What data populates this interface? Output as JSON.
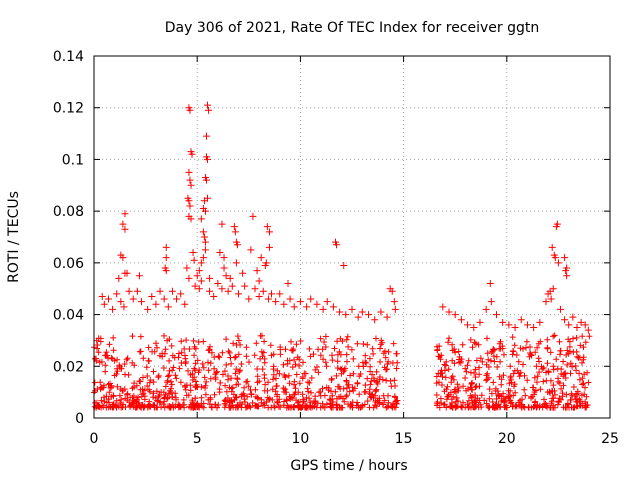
{
  "chart_data": {
    "type": "scatter",
    "title": "Day 306 of 2021, Rate Of TEC Index for receiver ggtn",
    "xlabel": "GPS time / hours",
    "ylabel": "ROTI / TECUs",
    "xlim": [
      0,
      25
    ],
    "ylim": [
      0,
      0.14
    ],
    "x_ticks": [
      0,
      5,
      10,
      15,
      20,
      25
    ],
    "y_ticks": [
      0,
      0.02,
      0.04,
      0.06,
      0.08,
      0.1,
      0.12,
      0.14
    ],
    "x_tick_labels": [
      "0",
      "5",
      "10",
      "15",
      "20",
      "25"
    ],
    "y_tick_labels": [
      "0",
      "0.02",
      "0.04",
      "0.06",
      "0.08",
      "0.1",
      "0.12",
      "0.14"
    ],
    "grid": true,
    "marker": "+",
    "marker_color": "#ff0000",
    "data_gap_hours": [
      14.7,
      16.6
    ],
    "series": [
      {
        "name": "ROTI",
        "points": [
          [
            4.6,
            0.12
          ],
          [
            4.65,
            0.119
          ],
          [
            5.5,
            0.121
          ],
          [
            5.55,
            0.119
          ],
          [
            5.45,
            0.109
          ],
          [
            4.7,
            0.103
          ],
          [
            4.75,
            0.102
          ],
          [
            5.45,
            0.101
          ],
          [
            5.5,
            0.1
          ],
          [
            4.6,
            0.095
          ],
          [
            4.65,
            0.092
          ],
          [
            4.7,
            0.09
          ],
          [
            5.4,
            0.093
          ],
          [
            5.45,
            0.092
          ],
          [
            4.55,
            0.085
          ],
          [
            4.6,
            0.084
          ],
          [
            4.65,
            0.082
          ],
          [
            5.35,
            0.084
          ],
          [
            5.5,
            0.085
          ],
          [
            1.5,
            0.079
          ],
          [
            4.6,
            0.078
          ],
          [
            4.7,
            0.077
          ],
          [
            5.3,
            0.081
          ],
          [
            5.4,
            0.08
          ],
          [
            5.2,
            0.077
          ],
          [
            6.2,
            0.075
          ],
          [
            7.7,
            0.078
          ],
          [
            8.4,
            0.074
          ],
          [
            1.4,
            0.075
          ],
          [
            1.5,
            0.073
          ],
          [
            6.8,
            0.074
          ],
          [
            6.85,
            0.072
          ],
          [
            8.5,
            0.072
          ],
          [
            22.4,
            0.074
          ],
          [
            22.45,
            0.075
          ],
          [
            5.3,
            0.072
          ],
          [
            5.35,
            0.07
          ],
          [
            5.4,
            0.068
          ],
          [
            6.9,
            0.068
          ],
          [
            6.95,
            0.067
          ],
          [
            8.5,
            0.066
          ],
          [
            3.5,
            0.066
          ],
          [
            4.8,
            0.064
          ],
          [
            5.4,
            0.065
          ],
          [
            6.1,
            0.064
          ],
          [
            7.6,
            0.065
          ],
          [
            11.7,
            0.068
          ],
          [
            11.75,
            0.067
          ],
          [
            22.2,
            0.066
          ],
          [
            1.3,
            0.063
          ],
          [
            1.4,
            0.062
          ],
          [
            3.5,
            0.062
          ],
          [
            4.85,
            0.061
          ],
          [
            5.2,
            0.06
          ],
          [
            5.3,
            0.062
          ],
          [
            6.3,
            0.062
          ],
          [
            6.9,
            0.06
          ],
          [
            8.1,
            0.062
          ],
          [
            8.35,
            0.06
          ],
          [
            22.3,
            0.063
          ],
          [
            22.35,
            0.062
          ],
          [
            22.5,
            0.06
          ],
          [
            22.8,
            0.062
          ],
          [
            22.9,
            0.058
          ],
          [
            3.45,
            0.058
          ],
          [
            3.5,
            0.057
          ],
          [
            4.5,
            0.058
          ],
          [
            5.1,
            0.057
          ],
          [
            6.3,
            0.058
          ],
          [
            6.4,
            0.055
          ],
          [
            7.9,
            0.057
          ],
          [
            8.3,
            0.059
          ],
          [
            12.1,
            0.059
          ],
          [
            22.85,
            0.057
          ],
          [
            22.9,
            0.055
          ],
          [
            1.5,
            0.056
          ],
          [
            1.6,
            0.056
          ],
          [
            1.2,
            0.054
          ],
          [
            2.2,
            0.055
          ],
          [
            4.6,
            0.054
          ],
          [
            5.0,
            0.055
          ],
          [
            5.2,
            0.053
          ],
          [
            5.6,
            0.054
          ],
          [
            6.6,
            0.054
          ],
          [
            7.2,
            0.056
          ],
          [
            8.0,
            0.053
          ],
          [
            9.4,
            0.052
          ],
          [
            19.2,
            0.052
          ],
          [
            0.4,
            0.047
          ],
          [
            0.5,
            0.044
          ],
          [
            0.7,
            0.046
          ],
          [
            0.9,
            0.042
          ],
          [
            1.1,
            0.048
          ],
          [
            1.3,
            0.045
          ],
          [
            1.45,
            0.043
          ],
          [
            1.7,
            0.049
          ],
          [
            1.9,
            0.046
          ],
          [
            2.1,
            0.049
          ],
          [
            2.3,
            0.045
          ],
          [
            2.6,
            0.042
          ],
          [
            2.8,
            0.047
          ],
          [
            3.0,
            0.044
          ],
          [
            3.2,
            0.049
          ],
          [
            3.4,
            0.046
          ],
          [
            3.6,
            0.043
          ],
          [
            3.8,
            0.049
          ],
          [
            4.0,
            0.046
          ],
          [
            4.2,
            0.048
          ],
          [
            4.4,
            0.044
          ],
          [
            4.9,
            0.051
          ],
          [
            5.1,
            0.05
          ],
          [
            5.6,
            0.049
          ],
          [
            5.8,
            0.047
          ],
          [
            6.0,
            0.052
          ],
          [
            6.2,
            0.05
          ],
          [
            6.5,
            0.049
          ],
          [
            6.7,
            0.051
          ],
          [
            7.0,
            0.048
          ],
          [
            7.3,
            0.051
          ],
          [
            7.5,
            0.046
          ],
          [
            7.8,
            0.05
          ],
          [
            8.0,
            0.047
          ],
          [
            8.2,
            0.049
          ],
          [
            8.45,
            0.046
          ],
          [
            8.6,
            0.048
          ],
          [
            8.8,
            0.045
          ],
          [
            9.0,
            0.048
          ],
          [
            9.2,
            0.044
          ],
          [
            9.5,
            0.046
          ],
          [
            9.7,
            0.043
          ],
          [
            10.0,
            0.045
          ],
          [
            10.3,
            0.043
          ],
          [
            10.5,
            0.046
          ],
          [
            10.8,
            0.044
          ],
          [
            11.1,
            0.042
          ],
          [
            11.3,
            0.045
          ],
          [
            11.6,
            0.043
          ],
          [
            11.9,
            0.041
          ],
          [
            12.2,
            0.04
          ],
          [
            12.5,
            0.042
          ],
          [
            12.8,
            0.039
          ],
          [
            13.0,
            0.041
          ],
          [
            13.3,
            0.04
          ],
          [
            13.6,
            0.038
          ],
          [
            13.9,
            0.041
          ],
          [
            14.2,
            0.039
          ],
          [
            14.35,
            0.05
          ],
          [
            14.45,
            0.049
          ],
          [
            14.55,
            0.045
          ],
          [
            14.6,
            0.042
          ],
          [
            16.9,
            0.043
          ],
          [
            17.2,
            0.041
          ],
          [
            17.5,
            0.04
          ],
          [
            17.8,
            0.038
          ],
          [
            18.1,
            0.036
          ],
          [
            18.4,
            0.035
          ],
          [
            18.7,
            0.037
          ],
          [
            19.0,
            0.042
          ],
          [
            19.25,
            0.045
          ],
          [
            19.5,
            0.04
          ],
          [
            19.8,
            0.037
          ],
          [
            20.1,
            0.036
          ],
          [
            20.4,
            0.035
          ],
          [
            20.7,
            0.038
          ],
          [
            21.0,
            0.036
          ],
          [
            21.3,
            0.035
          ],
          [
            21.6,
            0.037
          ],
          [
            21.9,
            0.045
          ],
          [
            22.1,
            0.049
          ],
          [
            22.25,
            0.05
          ],
          [
            22.6,
            0.042
          ],
          [
            22.8,
            0.038
          ],
          [
            23.0,
            0.036
          ],
          [
            23.2,
            0.039
          ],
          [
            23.4,
            0.035
          ],
          [
            23.6,
            0.037
          ],
          [
            23.8,
            0.036
          ],
          [
            23.95,
            0.034
          ],
          [
            22.0,
            0.048
          ],
          [
            22.15,
            0.046
          ]
        ]
      }
    ]
  }
}
